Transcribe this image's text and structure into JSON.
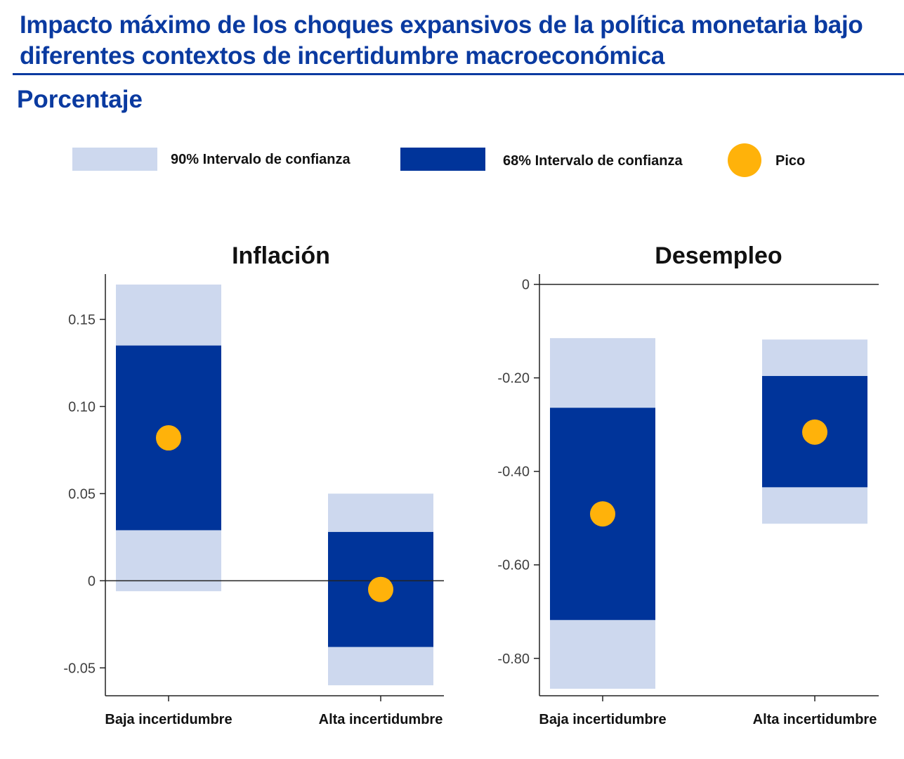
{
  "header": {
    "title": "Impacto máximo de los choques expansivos de la política monetaria bajo diferentes contextos de incertidumbre macroeconómica",
    "subtitle": "Porcentaje"
  },
  "colors": {
    "title": "#0a3aa0",
    "ci90": "#cdd8ee",
    "ci68": "#00349a",
    "peak": "#ffb20a",
    "axis": "#222222"
  },
  "legend": {
    "ci90_label": "90% Intervalo de confianza",
    "ci68_label": "68% Intervalo de confianza",
    "peak_label": "Pico"
  },
  "chart_data": [
    {
      "type": "range",
      "title": "Inflación",
      "categories": [
        "Baja incertidumbre",
        "Alta incertidumbre"
      ],
      "ylim": [
        -0.066,
        0.176
      ],
      "yticks": [
        -0.05,
        0,
        0.05,
        0.1,
        0.15
      ],
      "ytick_labels": [
        "-0.05",
        "0",
        "0.05",
        "0.10",
        "0.15"
      ],
      "ci90": [
        [
          -0.006,
          0.17
        ],
        [
          -0.06,
          0.05
        ]
      ],
      "ci68": [
        [
          0.029,
          0.135
        ],
        [
          -0.038,
          0.028
        ]
      ],
      "peak": [
        0.082,
        -0.005
      ],
      "zero_line": true,
      "grid": false
    },
    {
      "type": "range",
      "title": "Desempleo",
      "categories": [
        "Baja incertidumbre",
        "Alta incertidumbre"
      ],
      "ylim": [
        -0.88,
        0.022
      ],
      "yticks": [
        -0.8,
        -0.6,
        -0.4,
        -0.2,
        0
      ],
      "ytick_labels": [
        "-0.80",
        "-0.60",
        "-0.40",
        "-0.20",
        "0"
      ],
      "ci90": [
        [
          -0.865,
          -0.115
        ],
        [
          -0.512,
          -0.118
        ]
      ],
      "ci68": [
        [
          -0.718,
          -0.264
        ],
        [
          -0.434,
          -0.196
        ]
      ],
      "peak": [
        -0.491,
        -0.316
      ],
      "zero_line": true,
      "grid": false
    }
  ]
}
